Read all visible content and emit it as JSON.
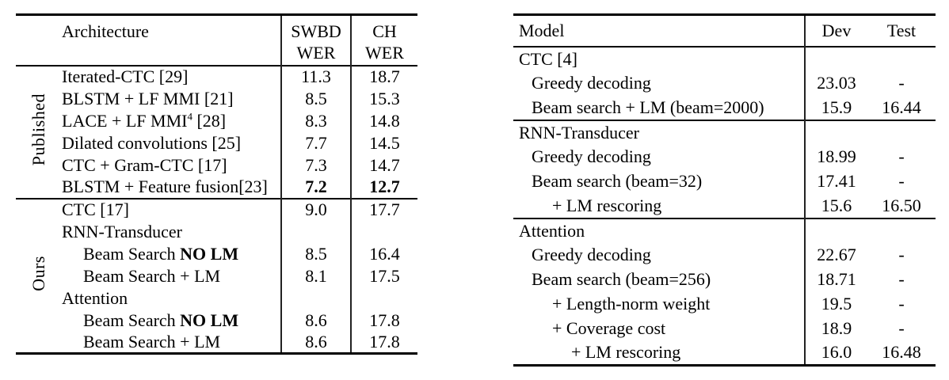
{
  "page": {
    "background_color": "#ffffff",
    "text_color": "#000000",
    "rule_color": "#000000"
  },
  "left_table": {
    "headers": {
      "architecture": "Architecture",
      "swbd_line1": "SWBD",
      "swbd_line2": "WER",
      "ch_line1": "CH",
      "ch_line2": "WER"
    },
    "groups": [
      {
        "label": "Published"
      },
      {
        "label": "Ours"
      }
    ],
    "rows": [
      {
        "architecture": "Iterated-CTC [29]",
        "swbd": "11.3",
        "ch": "18.7"
      },
      {
        "architecture": "BLSTM + LF MMI [21]",
        "swbd": "8.5",
        "ch": "15.3"
      },
      {
        "architecture": "LACE + LF MMI",
        "sup": "4",
        "post": " [28]",
        "swbd": "8.3",
        "ch": "14.8"
      },
      {
        "architecture": "Dilated convolutions [25]",
        "swbd": "7.7",
        "ch": "14.5"
      },
      {
        "architecture": "CTC + Gram-CTC [17]",
        "swbd": "7.3",
        "ch": "14.7"
      },
      {
        "architecture": "BLSTM + Feature fusion[23]",
        "swbd": "7.2",
        "ch": "12.7"
      },
      {
        "architecture": "CTC [17]",
        "swbd": "9.0",
        "ch": "17.7"
      },
      {
        "architecture": "RNN-Transducer",
        "swbd": "",
        "ch": ""
      },
      {
        "architecture": "Beam Search ",
        "bold": "NO LM",
        "swbd": "8.5",
        "ch": "16.4"
      },
      {
        "architecture": "Beam Search + LM",
        "swbd": "8.1",
        "ch": "17.5"
      },
      {
        "architecture": "Attention",
        "swbd": "",
        "ch": ""
      },
      {
        "architecture": "Beam Search ",
        "bold": "NO LM",
        "swbd": "8.6",
        "ch": "17.8"
      },
      {
        "architecture": "Beam Search + LM",
        "swbd": "8.6",
        "ch": "17.8"
      }
    ]
  },
  "right_table": {
    "headers": {
      "model": "Model",
      "dev": "Dev",
      "test": "Test"
    },
    "sections": [
      {
        "rows": [
          {
            "model": "CTC [4]",
            "dev": "",
            "test": ""
          },
          {
            "model": "Greedy decoding",
            "dev": "23.03",
            "test": "-"
          },
          {
            "model": "Beam search + LM (beam=2000)",
            "dev": "15.9",
            "test": "16.44"
          }
        ]
      },
      {
        "rows": [
          {
            "model": "RNN-Transducer",
            "dev": "",
            "test": ""
          },
          {
            "model": "Greedy decoding",
            "dev": "18.99",
            "test": "-"
          },
          {
            "model": "Beam search (beam=32)",
            "dev": "17.41",
            "test": "-"
          },
          {
            "model": "+ LM rescoring",
            "dev": "15.6",
            "test": "16.50"
          }
        ]
      },
      {
        "rows": [
          {
            "model": "Attention",
            "dev": "",
            "test": ""
          },
          {
            "model": "Greedy decoding",
            "dev": "22.67",
            "test": "-"
          },
          {
            "model": "Beam search (beam=256)",
            "dev": "18.71",
            "test": "-"
          },
          {
            "model": "+ Length-norm weight",
            "dev": "19.5",
            "test": "-"
          },
          {
            "model": "+ Coverage cost",
            "dev": "18.9",
            "test": "-"
          },
          {
            "model": "+ LM rescoring",
            "dev": "16.0",
            "test": "16.48"
          }
        ]
      }
    ]
  }
}
